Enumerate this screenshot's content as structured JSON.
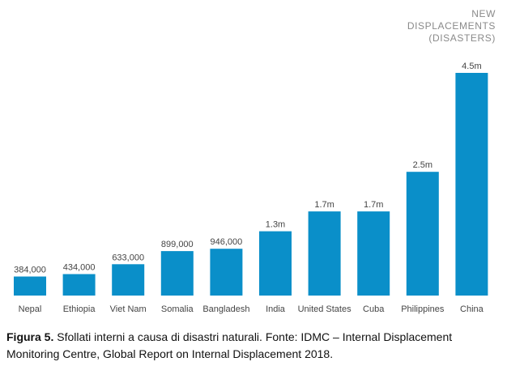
{
  "legend": {
    "lines": [
      "NEW",
      "DISPLACEMENTS",
      "(DISASTERS)"
    ]
  },
  "chart_data": {
    "type": "bar",
    "categories": [
      "Nepal",
      "Ethiopia",
      "Viet Nam",
      "Somalia",
      "Bangladesh",
      "India",
      "United States",
      "Cuba",
      "Philippines",
      "China"
    ],
    "values": [
      384000,
      434000,
      633000,
      899000,
      946000,
      1300000,
      1700000,
      1700000,
      2500000,
      4500000
    ],
    "data_labels": [
      "384,000",
      "434,000",
      "633,000",
      "899,000",
      "946,000",
      "1.3m",
      "1.7m",
      "1.7m",
      "2.5m",
      "4.5m"
    ],
    "ylim": [
      0,
      4500000
    ],
    "bar_color": "#0a8fc9",
    "label_color": "#444444",
    "grid": false
  },
  "caption": {
    "label": "Figura 5.",
    "text": " Sfollati interni a causa di disastri naturali. Fonte: IDMC – Internal Displacement Monitoring Centre, Global Report on Internal Displacement 2018."
  }
}
